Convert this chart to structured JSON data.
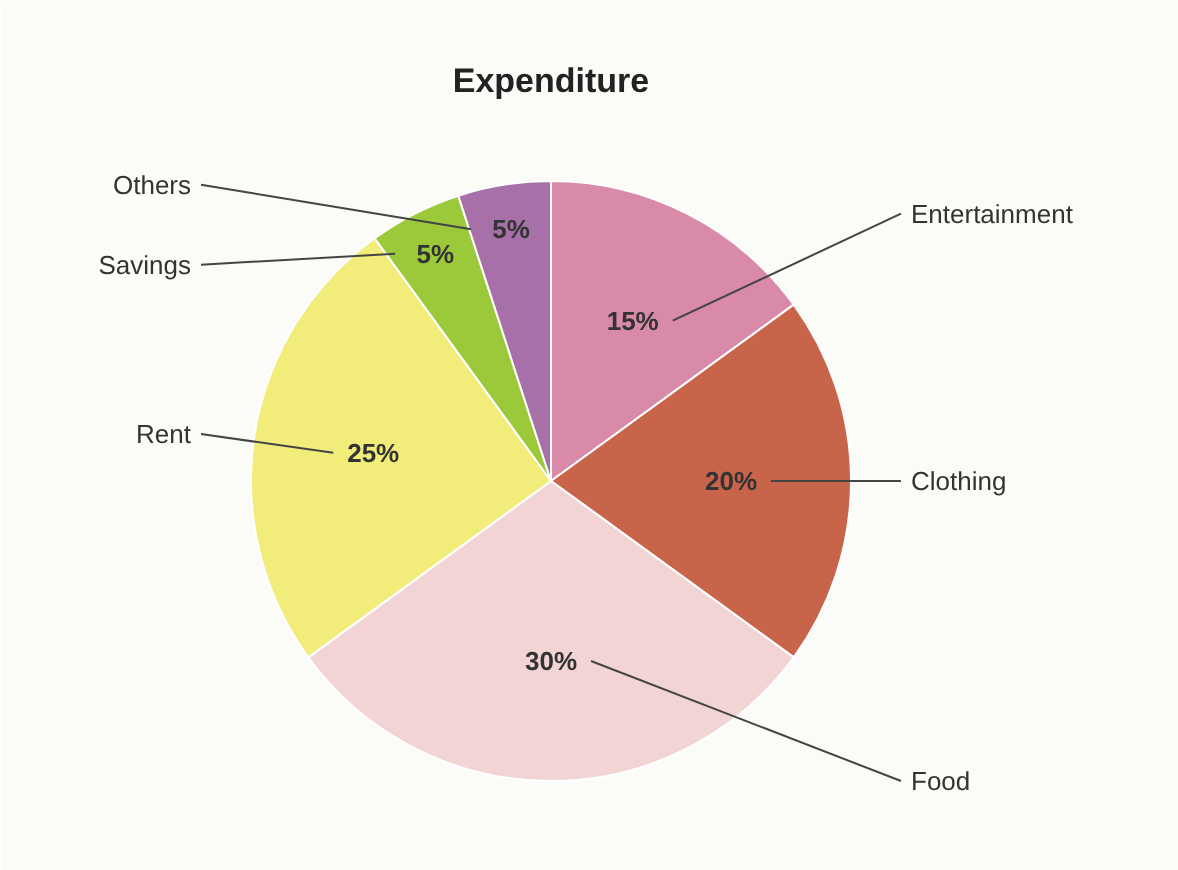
{
  "chart_data": {
    "type": "pie",
    "title": "Expenditure",
    "categories": [
      "Entertainment",
      "Clothing",
      "Food",
      "Rent",
      "Savings",
      "Others"
    ],
    "values": [
      15,
      20,
      30,
      25,
      5,
      5
    ],
    "value_labels": [
      "15%",
      "20%",
      "30%",
      "25%",
      "5%",
      "5%"
    ],
    "colors": [
      "#d98aa8",
      "#c8644a",
      "#f2d4d4",
      "#f2ec7a",
      "#9cc93a",
      "#a870a8"
    ]
  }
}
